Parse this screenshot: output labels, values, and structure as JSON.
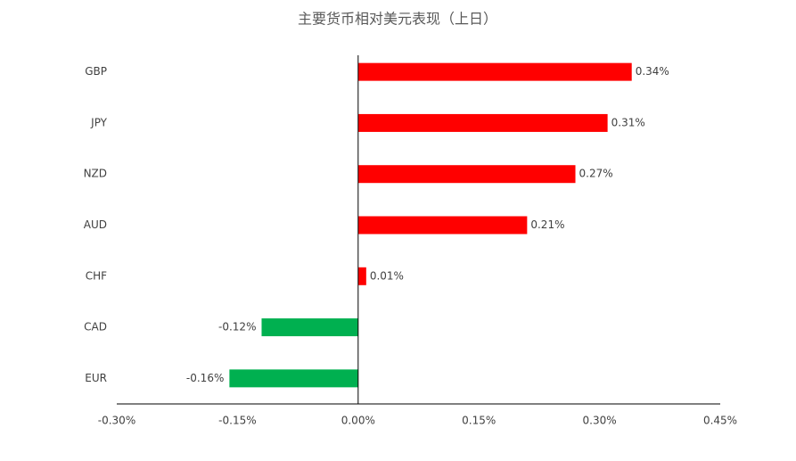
{
  "chart_data": {
    "type": "bar",
    "orientation": "horizontal",
    "title": "主要货币相对美元表现（上日）",
    "categories": [
      "GBP",
      "JPY",
      "NZD",
      "AUD",
      "CHF",
      "CAD",
      "EUR"
    ],
    "values": [
      0.34,
      0.31,
      0.27,
      0.21,
      0.01,
      -0.12,
      -0.16
    ],
    "value_labels": [
      "0.34%",
      "0.31%",
      "0.27%",
      "0.21%",
      "0.01%",
      "-0.12%",
      "-0.16%"
    ],
    "colors": [
      "#ff0000",
      "#ff0000",
      "#ff0000",
      "#ff0000",
      "#ff0000",
      "#00b050",
      "#00b050"
    ],
    "xlim": [
      -0.3,
      0.45
    ],
    "xticks": [
      {
        "value": -0.3,
        "label": "-0.30%"
      },
      {
        "value": -0.15,
        "label": "-0.15%"
      },
      {
        "value": 0,
        "label": "0.00%"
      },
      {
        "value": 0.15,
        "label": "0.15%"
      },
      {
        "value": 0.3,
        "label": "0.30%"
      },
      {
        "value": 0.45,
        "label": "0.45%"
      }
    ],
    "grid": false
  }
}
